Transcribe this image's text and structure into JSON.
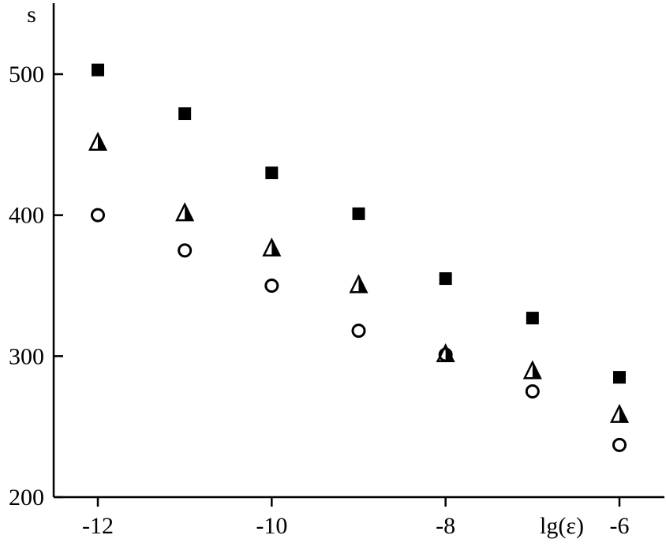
{
  "chart_data": {
    "type": "scatter",
    "title": "",
    "xlabel": "lg(ε)",
    "ylabel": "s",
    "xlim": [
      -12.5,
      -5.4
    ],
    "ylim": [
      200,
      550
    ],
    "x_ticks": [
      -12,
      -10,
      -8,
      -6
    ],
    "x_tick_labels": [
      "-12",
      "-10",
      "-8",
      "-6"
    ],
    "y_ticks": [
      200,
      300,
      400,
      500
    ],
    "y_tick_labels": [
      "200",
      "300",
      "400",
      "500"
    ],
    "grid": false,
    "legend": "none",
    "x": [
      -12,
      -11,
      -10,
      -9,
      -8,
      -7,
      -6
    ],
    "series": [
      {
        "marker": "filled-square",
        "values": [
          503,
          472,
          430,
          401,
          355,
          327,
          285
        ]
      },
      {
        "marker": "half-filled-triangle",
        "values": [
          452,
          402,
          377,
          351,
          302,
          290,
          259
        ]
      },
      {
        "marker": "open-circle",
        "values": [
          400,
          375,
          350,
          318,
          301,
          275,
          237
        ]
      }
    ]
  }
}
